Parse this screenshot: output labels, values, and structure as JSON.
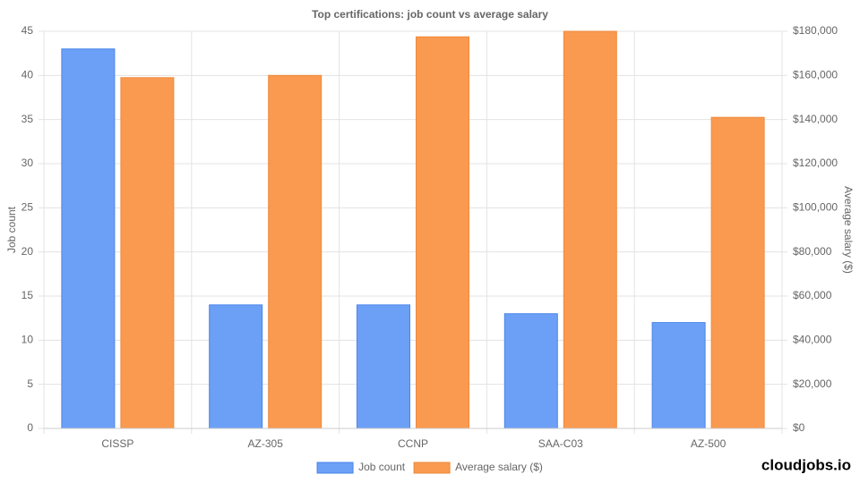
{
  "chart_data": {
    "type": "bar",
    "title": "Top certifications: job count vs average salary",
    "categories": [
      "CISSP",
      "AZ-305",
      "CCNP",
      "SAA-C03",
      "AZ-500"
    ],
    "series": [
      {
        "name": "Job count",
        "color": "#6ca0f6",
        "values": [
          43,
          14,
          14,
          13,
          12
        ]
      },
      {
        "name": "Average salary ($)",
        "color": "#f99a50",
        "axis": "y2",
        "values": [
          159000,
          160000,
          177500,
          180000,
          141000
        ]
      }
    ],
    "ylabel": "Job count",
    "y2label": "Average salary ($)",
    "ylim": [
      0,
      45
    ],
    "yticks": [
      0,
      5,
      10,
      15,
      20,
      25,
      30,
      35,
      40,
      45
    ],
    "y2lim": [
      0,
      180000
    ],
    "y2ticks": [
      {
        "value": 0,
        "label": "$0"
      },
      {
        "value": 20000,
        "label": "$20,000"
      },
      {
        "value": 40000,
        "label": "$40,000"
      },
      {
        "value": 60000,
        "label": "$60,000"
      },
      {
        "value": 80000,
        "label": "$80,000"
      },
      {
        "value": 100000,
        "label": "$100,000"
      },
      {
        "value": 120000,
        "label": "$120,000"
      },
      {
        "value": 140000,
        "label": "$140,000"
      },
      {
        "value": 160000,
        "label": "$160,000"
      },
      {
        "value": 180000,
        "label": "$180,000"
      }
    ],
    "grid": true,
    "legend": "bottom",
    "watermark": "cloudjobs.io"
  }
}
